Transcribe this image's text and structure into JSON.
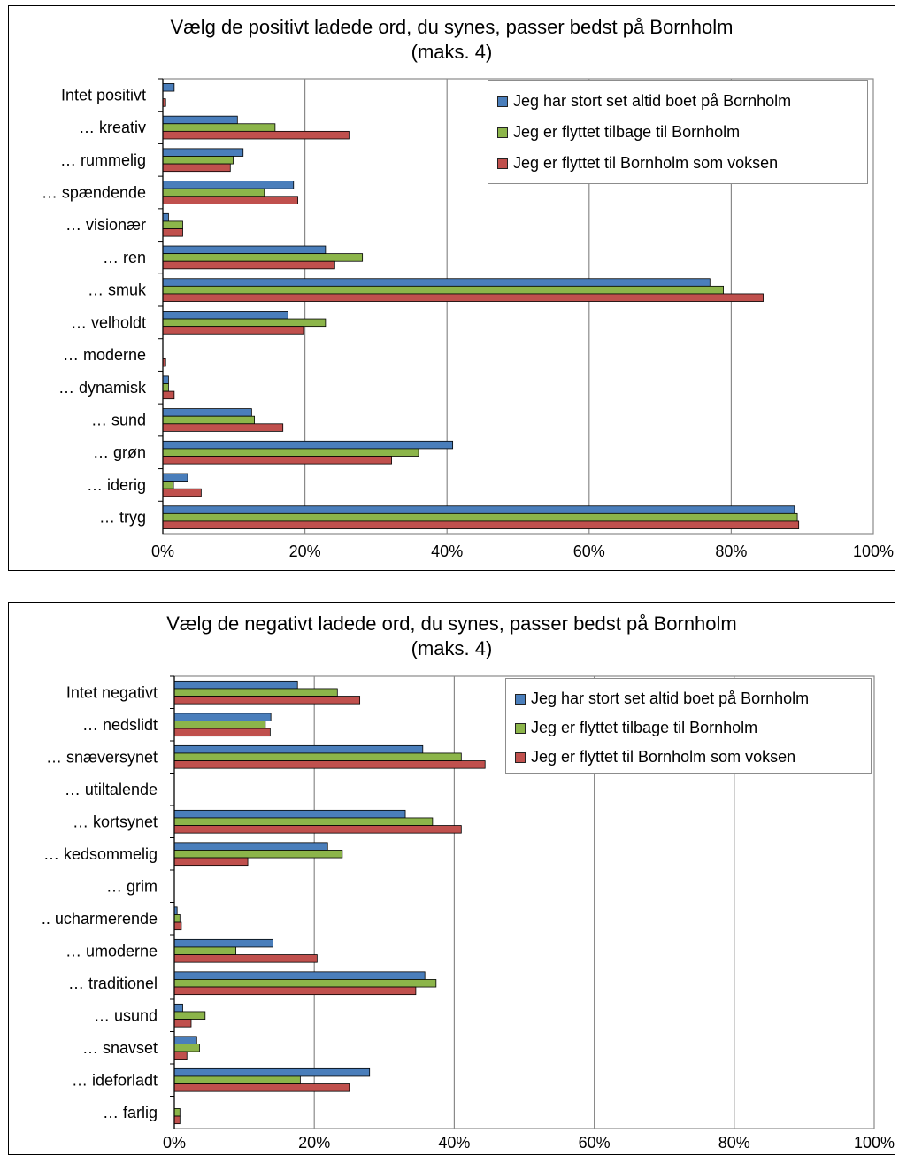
{
  "chart_data": [
    {
      "type": "bar",
      "orientation": "horizontal",
      "title_lines": [
        "Vælg de positivt ladede ord, du synes, passer bedst på Bornholm",
        "(maks. 4)"
      ],
      "categories": [
        "Intet positivt",
        "… kreativ",
        "… rummelig",
        "… spændende",
        "… visionær",
        "… ren",
        "… smuk",
        "… velholdt",
        "… moderne",
        "… dynamisk",
        "… sund",
        "… grøn",
        "… iderig",
        "… tryg"
      ],
      "series": [
        {
          "name": "Jeg har stort set altid boet på Bornholm",
          "color": "#4a7ebb",
          "values": [
            1.6,
            10.5,
            11.3,
            18.4,
            0.8,
            22.9,
            77.0,
            17.6,
            0,
            0.8,
            12.5,
            40.8,
            3.5,
            88.9
          ]
        },
        {
          "name": "Jeg er flyttet tilbage til Bornholm",
          "color": "#8cb54a",
          "values": [
            0,
            15.8,
            9.9,
            14.3,
            2.8,
            28.1,
            78.9,
            22.9,
            0,
            0.8,
            12.9,
            36.0,
            1.5,
            89.3
          ]
        },
        {
          "name": "Jeg er flyttet til Bornholm som voksen",
          "color": "#c0504d",
          "values": [
            0.4,
            26.2,
            9.5,
            19.0,
            2.8,
            24.2,
            84.5,
            19.8,
            0.4,
            1.6,
            16.9,
            32.2,
            5.4,
            89.5
          ]
        }
      ],
      "xlim": [
        0,
        100
      ],
      "x_ticks": [
        "0%",
        "20%",
        "40%",
        "60%",
        "80%",
        "100%"
      ],
      "grid": true,
      "legend": "top-right"
    },
    {
      "type": "bar",
      "orientation": "horizontal",
      "title_lines": [
        "Vælg de negativt ladede ord, du synes, passer bedst på Bornholm",
        "(maks. 4)"
      ],
      "categories": [
        "Intet negativt",
        "… nedslidt",
        "… snæversynet",
        "… utiltalende",
        "… kortsynet",
        "… kedsommelig",
        "… grim",
        ".. ucharmerende",
        "… umoderne",
        "… traditionel",
        "… usund",
        "… snavset",
        "… ideforladt",
        "… farlig"
      ],
      "series": [
        {
          "name": "Jeg har stort set altid boet på Bornholm",
          "color": "#4a7ebb",
          "values": [
            17.6,
            13.8,
            35.5,
            0,
            33.0,
            21.9,
            0,
            0.4,
            14.1,
            35.8,
            1.2,
            3.2,
            27.9,
            0
          ]
        },
        {
          "name": "Jeg er flyttet tilbage til Bornholm",
          "color": "#8cb54a",
          "values": [
            23.3,
            13.0,
            41.0,
            0,
            36.9,
            24.0,
            0,
            0.8,
            8.8,
            37.4,
            4.4,
            3.6,
            18.0,
            0.8
          ]
        },
        {
          "name": "Jeg er flyttet til Bornholm som voksen",
          "color": "#c0504d",
          "values": [
            26.5,
            13.7,
            44.4,
            0,
            41.0,
            10.5,
            0,
            1.0,
            20.4,
            34.5,
            2.4,
            1.8,
            25.0,
            0.8
          ]
        }
      ],
      "xlim": [
        0,
        100
      ],
      "x_ticks": [
        "0%",
        "20%",
        "40%",
        "60%",
        "80%",
        "100%"
      ],
      "grid": true,
      "legend": "top-right"
    }
  ]
}
